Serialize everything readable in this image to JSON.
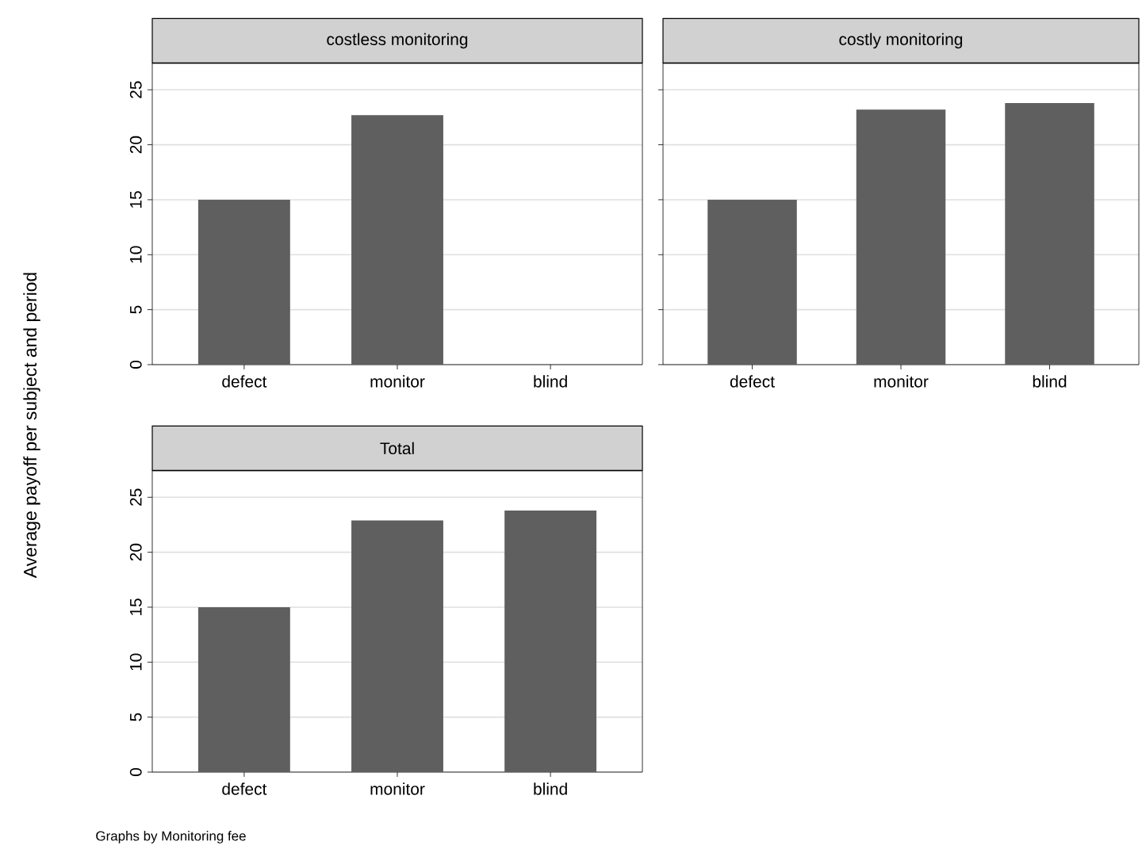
{
  "chart_data": [
    {
      "type": "bar",
      "title": "costless monitoring",
      "categories": [
        "defect",
        "monitor",
        "blind"
      ],
      "values": [
        15.0,
        22.7,
        null
      ],
      "color": "#5f5f5f",
      "ylim": [
        0,
        27.4
      ],
      "yticks": [
        0,
        5,
        10,
        15,
        20,
        25
      ],
      "grid": "y",
      "ylabel": "Average payoff per subject and period"
    },
    {
      "type": "bar",
      "title": "costly monitoring",
      "categories": [
        "defect",
        "monitor",
        "blind"
      ],
      "values": [
        15.0,
        23.2,
        23.8
      ],
      "color": "#5f5f5f",
      "ylim": [
        0,
        27.4
      ],
      "yticks": [
        0,
        5,
        10,
        15,
        20,
        25
      ],
      "grid": "y",
      "tick_labels": "x"
    },
    {
      "type": "bar",
      "title": "Total",
      "categories": [
        "defect",
        "monitor",
        "blind"
      ],
      "values": [
        15.0,
        22.9,
        23.8
      ],
      "color": "#5f5f5f",
      "ylim": [
        0,
        27.4
      ],
      "yticks": [
        0,
        5,
        10,
        15,
        20,
        25
      ],
      "grid": "y",
      "annotations": [
        "Graphs by Monitoring fee"
      ]
    }
  ]
}
